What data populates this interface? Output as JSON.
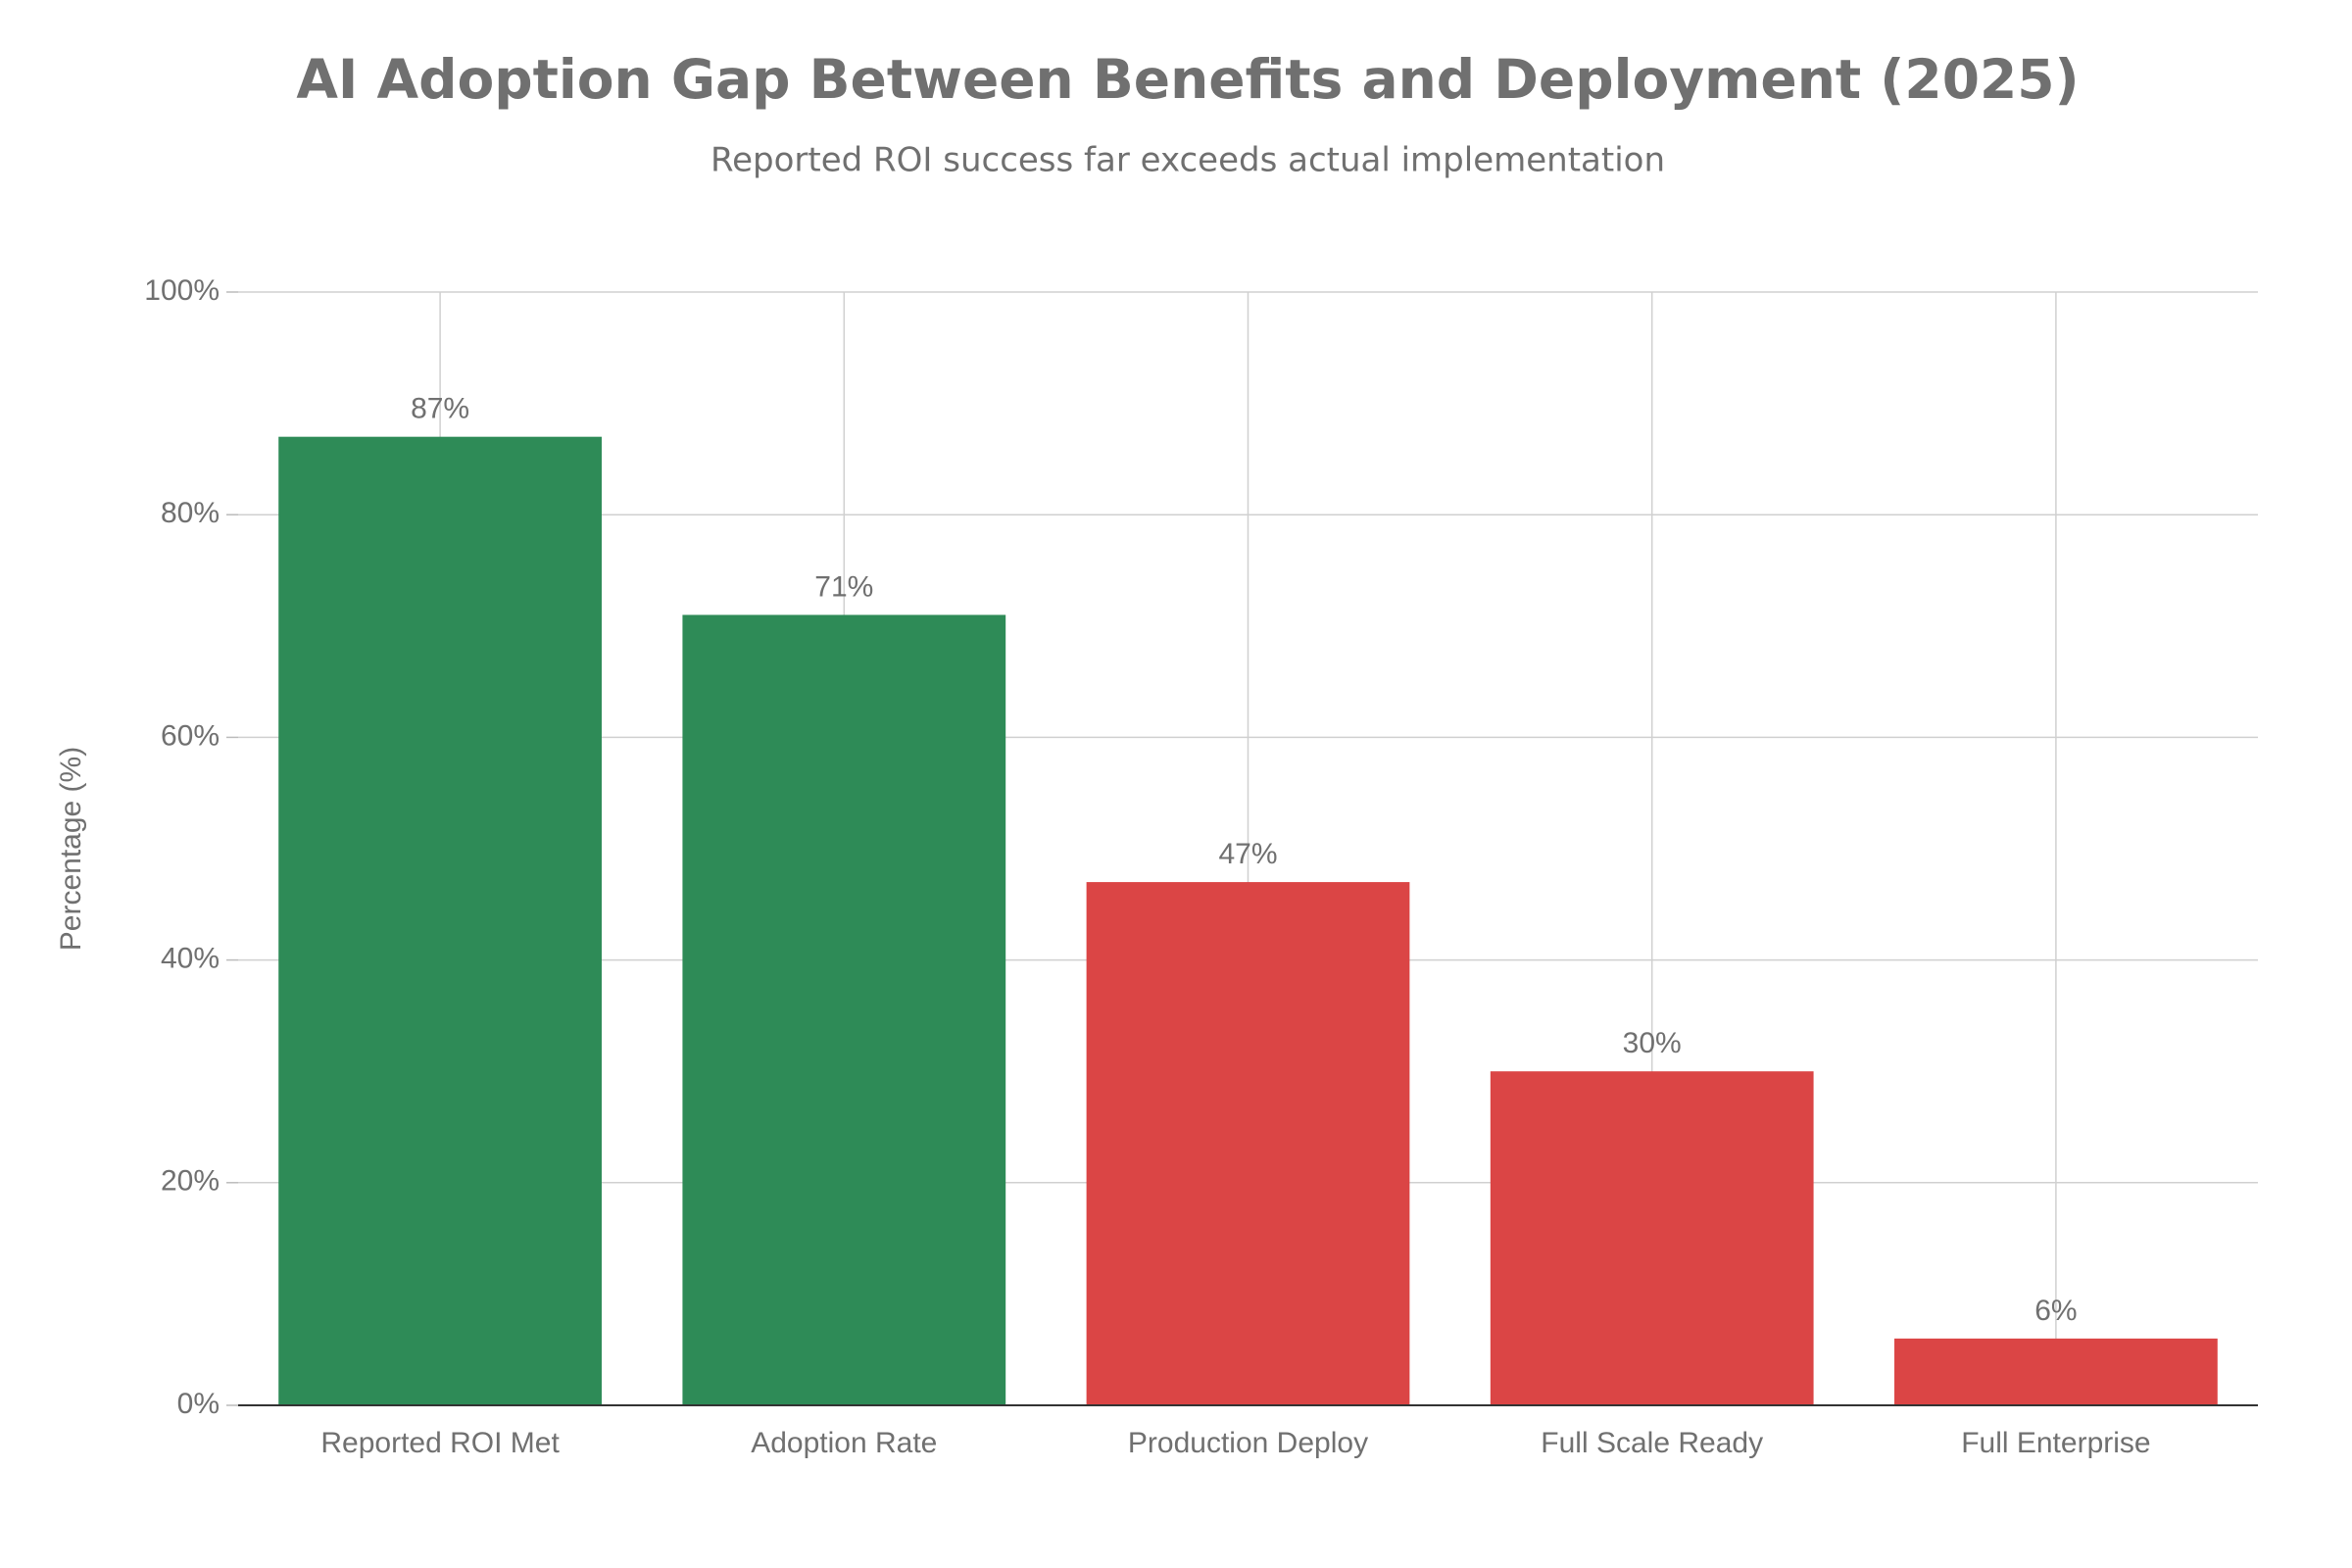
{
  "chart_data": {
    "type": "bar",
    "title": "AI Adoption Gap Between Benefits and Deployment (2025)",
    "subtitle": "Reported ROI success far exceeds actual implementation",
    "y_label": "Percentage (%)",
    "categories": [
      "Reported ROI Met",
      "Adoption Rate",
      "Production Deploy",
      "Full Scale Ready",
      "Full Enterprise"
    ],
    "values": [
      87,
      71,
      47,
      30,
      6
    ],
    "value_labels": [
      "87%",
      "71%",
      "47%",
      "30%",
      "6%"
    ],
    "colors": [
      "#2e8b57",
      "#2e8b57",
      "#db4545",
      "#db4545",
      "#db4545"
    ],
    "ylim": [
      0,
      100
    ],
    "yticks": [
      {
        "value": 0,
        "label": "0%"
      },
      {
        "value": 20,
        "label": "20%"
      },
      {
        "value": 40,
        "label": "40%"
      },
      {
        "value": 60,
        "label": "60%"
      },
      {
        "value": 80,
        "label": "80%"
      },
      {
        "value": 100,
        "label": "100%"
      }
    ],
    "grid": true
  }
}
